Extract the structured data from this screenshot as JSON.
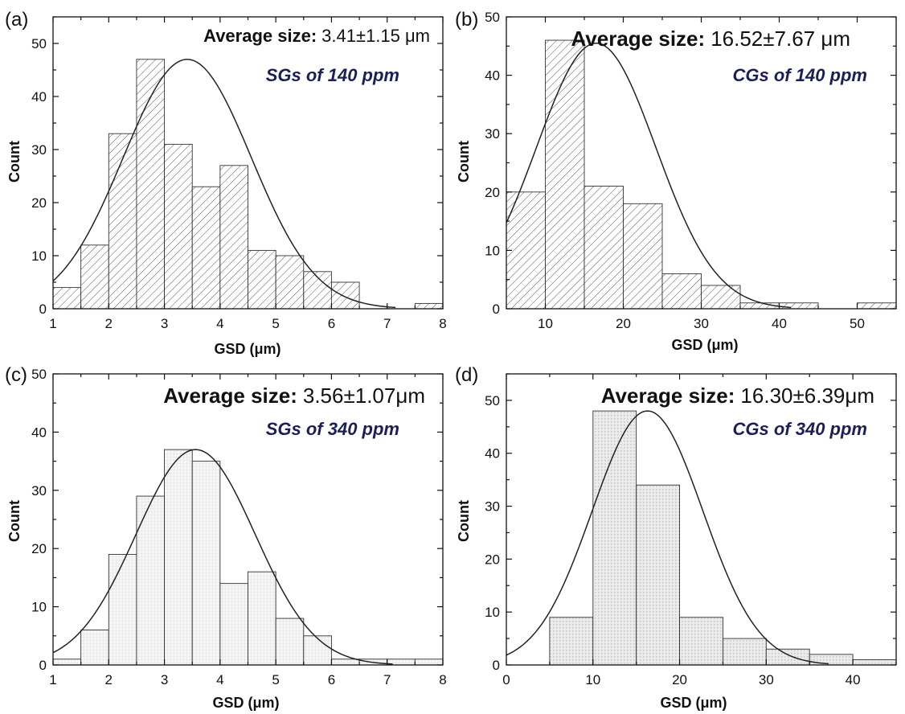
{
  "chart_data": [
    {
      "type": "bar",
      "panel_label": "(a)",
      "avg_prefix": "Average size:",
      "avg_value": "3.41±1.15 μm",
      "sample_label": "SGs of 140 ppm",
      "xlabel": "GSD (μm)",
      "ylabel": "Count",
      "xlim": [
        1,
        8
      ],
      "ylim": [
        0,
        55
      ],
      "xticks": [
        1,
        2,
        3,
        4,
        5,
        6,
        7,
        8
      ],
      "yticks": [
        0,
        10,
        20,
        30,
        40,
        50
      ],
      "bin_edges": [
        1,
        1.5,
        2,
        2.5,
        3,
        3.5,
        4,
        4.5,
        5,
        5.5,
        6,
        6.5,
        7,
        7.5,
        8
      ],
      "values": [
        4,
        12,
        33,
        47,
        31,
        23,
        27,
        11,
        10,
        7,
        5,
        0,
        0,
        1
      ],
      "fit": {
        "mean": 3.41,
        "sd": 1.15,
        "peak": 47,
        "x_range": [
          1,
          7.15
        ]
      },
      "fill_style": "hatch",
      "grid": false
    },
    {
      "type": "bar",
      "panel_label": "(b)",
      "avg_prefix": "Average size:",
      "avg_value": "16.52±7.67 μm",
      "sample_label": "CGs of 140 ppm",
      "xlabel": "GSD (μm)",
      "ylabel": "Count",
      "xlim": [
        5,
        55
      ],
      "ylim": [
        0,
        50
      ],
      "xticks": [
        10,
        20,
        30,
        40,
        50
      ],
      "yticks": [
        0,
        10,
        20,
        30,
        40,
        50
      ],
      "bin_edges": [
        5,
        10,
        15,
        20,
        25,
        30,
        35,
        40,
        45,
        50,
        55
      ],
      "values": [
        20,
        46,
        21,
        18,
        6,
        4,
        1,
        1,
        0,
        1
      ],
      "fit": {
        "mean": 16.52,
        "sd": 7.67,
        "peak": 45.5,
        "x_range": [
          5,
          41.5
        ]
      },
      "fill_style": "hatch",
      "grid": false
    },
    {
      "type": "bar",
      "panel_label": "(c)",
      "avg_prefix": "Average size:",
      "avg_value": "3.56±1.07μm",
      "sample_label": "SGs of 340 ppm",
      "xlabel": "GSD (μm)",
      "ylabel": "Count",
      "xlim": [
        1,
        8
      ],
      "ylim": [
        0,
        50
      ],
      "xticks": [
        1,
        2,
        3,
        4,
        5,
        6,
        7,
        8
      ],
      "yticks": [
        0,
        10,
        20,
        30,
        40,
        50
      ],
      "bin_edges": [
        1,
        1.5,
        2,
        2.5,
        3,
        3.5,
        4,
        4.5,
        5,
        5.5,
        6,
        6.5,
        7,
        7.5,
        8
      ],
      "values": [
        1,
        6,
        19,
        29,
        37,
        35,
        14,
        16,
        8,
        5,
        1,
        1,
        1,
        1
      ],
      "fit": {
        "mean": 3.56,
        "sd": 1.07,
        "peak": 37,
        "x_range": [
          1,
          7.1
        ]
      },
      "fill_style": "fine-grid",
      "grid": false
    },
    {
      "type": "bar",
      "panel_label": "(d)",
      "avg_prefix": "Average size:",
      "avg_value": "16.30±6.39μm",
      "sample_label": "CGs of 340 ppm",
      "xlabel": "GSD (μm)",
      "ylabel": "Count",
      "xlim": [
        0,
        45
      ],
      "ylim": [
        0,
        55
      ],
      "xticks": [
        0,
        10,
        20,
        30,
        40
      ],
      "yticks": [
        0,
        10,
        20,
        30,
        40,
        50
      ],
      "bin_edges": [
        5,
        10,
        15,
        20,
        25,
        30,
        35,
        40,
        45
      ],
      "values": [
        9,
        48,
        34,
        9,
        5,
        3,
        2,
        1
      ],
      "fit": {
        "mean": 16.3,
        "sd": 6.39,
        "peak": 48,
        "x_range": [
          0,
          37.2
        ]
      },
      "fill_style": "grey-dots",
      "grid": false
    }
  ]
}
